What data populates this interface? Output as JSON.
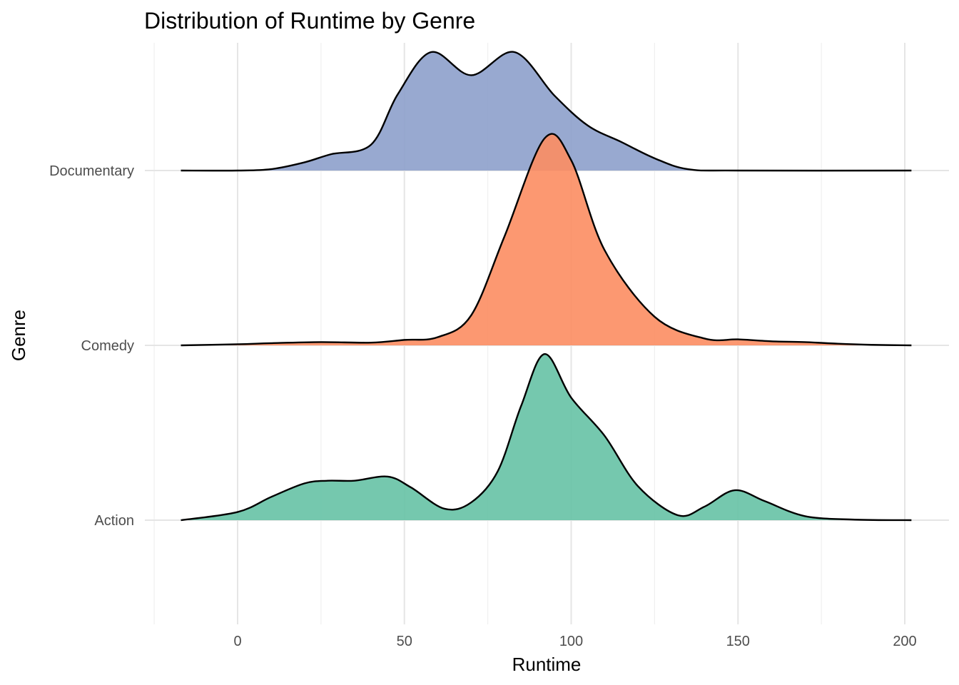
{
  "chart_data": {
    "type": "ridgeline",
    "title": "Distribution of Runtime by Genre",
    "xlabel": "Runtime",
    "ylabel": "Genre",
    "xlim": [
      -25,
      205
    ],
    "x_ticks": [
      0,
      50,
      100,
      150,
      200
    ],
    "x_minor_ticks": [
      -25,
      25,
      75,
      125,
      175
    ],
    "grid": true,
    "legend": "none",
    "categories": [
      "Action",
      "Comedy",
      "Documentary"
    ],
    "series": [
      {
        "name": "Action",
        "color": "#66c2a5",
        "x": [
          -17,
          0,
          10,
          20,
          27,
          35,
          45,
          52,
          62,
          70,
          78,
          85,
          92,
          100,
          110,
          120,
          132,
          140,
          149,
          158,
          170,
          185,
          202
        ],
        "density": [
          0.0,
          0.003,
          0.0085,
          0.0135,
          0.0145,
          0.0145,
          0.016,
          0.012,
          0.0042,
          0.0065,
          0.018,
          0.042,
          0.061,
          0.045,
          0.031,
          0.0125,
          0.0018,
          0.005,
          0.011,
          0.007,
          0.0015,
          0.0002,
          0.0
        ]
      },
      {
        "name": "Comedy",
        "color": "#fc8d62",
        "x": [
          -17,
          0,
          10,
          25,
          40,
          50,
          60,
          70,
          80,
          92,
          100,
          110,
          125,
          140,
          150,
          160,
          170,
          180,
          190,
          202
        ],
        "density": [
          0.0,
          0.0004,
          0.0008,
          0.0012,
          0.001,
          0.002,
          0.003,
          0.011,
          0.04,
          0.076,
          0.068,
          0.035,
          0.0105,
          0.0025,
          0.0022,
          0.0015,
          0.0012,
          0.0006,
          0.0002,
          0.0
        ]
      },
      {
        "name": "Documentary",
        "color": "#8da0cb",
        "x": [
          -17,
          0,
          10,
          20,
          28,
          40,
          48,
          58,
          70,
          83,
          95,
          105,
          115,
          125,
          135,
          150,
          202
        ],
        "density": [
          0.0,
          0.0,
          0.0005,
          0.003,
          0.006,
          0.0095,
          0.028,
          0.0435,
          0.035,
          0.0435,
          0.0275,
          0.0165,
          0.0105,
          0.0045,
          0.0005,
          0.0,
          0.0
        ]
      }
    ]
  }
}
